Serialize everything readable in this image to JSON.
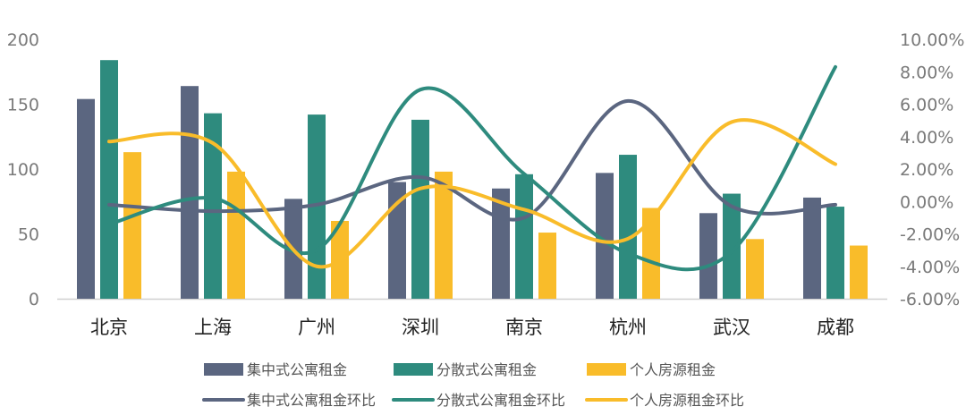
{
  "chart_data": {
    "type": "bar",
    "categories": [
      "北京",
      "上海",
      "广州",
      "深圳",
      "南京",
      "杭州",
      "武汉",
      "成都"
    ],
    "bar_series": [
      {
        "name": "集中式公寓租金",
        "color": "#5b6680",
        "values": [
          154,
          164,
          77,
          90,
          85,
          97,
          66,
          78
        ]
      },
      {
        "name": "分散式公寓租金",
        "color": "#2e8b7e",
        "values": [
          184,
          143,
          142,
          138,
          96,
          111,
          81,
          71
        ]
      },
      {
        "name": "个人房源租金",
        "color": "#f9bc2a",
        "values": [
          113,
          98,
          60,
          98,
          51,
          70,
          46,
          41
        ]
      }
    ],
    "line_series": [
      {
        "name": "集中式公寓租金环比",
        "color": "#5b6680",
        "values": [
          -0.2,
          -0.6,
          -0.2,
          1.5,
          -1.0,
          6.2,
          -0.3,
          -0.2
        ]
      },
      {
        "name": "分散式公寓租金环比",
        "color": "#2e8b7e",
        "values": [
          -1.4,
          0.2,
          -3.0,
          6.9,
          1.7,
          -3.2,
          -3.1,
          8.3
        ]
      },
      {
        "name": "个人房源租金环比",
        "color": "#f9bc2a",
        "values": [
          3.7,
          3.6,
          -4.0,
          0.8,
          -0.5,
          -2.3,
          4.9,
          2.3
        ]
      }
    ],
    "y_left": {
      "min": 0,
      "max": 200,
      "ticks": [
        "0",
        "50",
        "100",
        "150",
        "200"
      ]
    },
    "y_right": {
      "min": -6,
      "max": 10,
      "ticks": [
        "-6.00%",
        "-4.00%",
        "-2.00%",
        "0.00%",
        "2.00%",
        "4.00%",
        "6.00%",
        "8.00%",
        "10.00%"
      ]
    },
    "legend_position": "bottom",
    "grid": false
  }
}
